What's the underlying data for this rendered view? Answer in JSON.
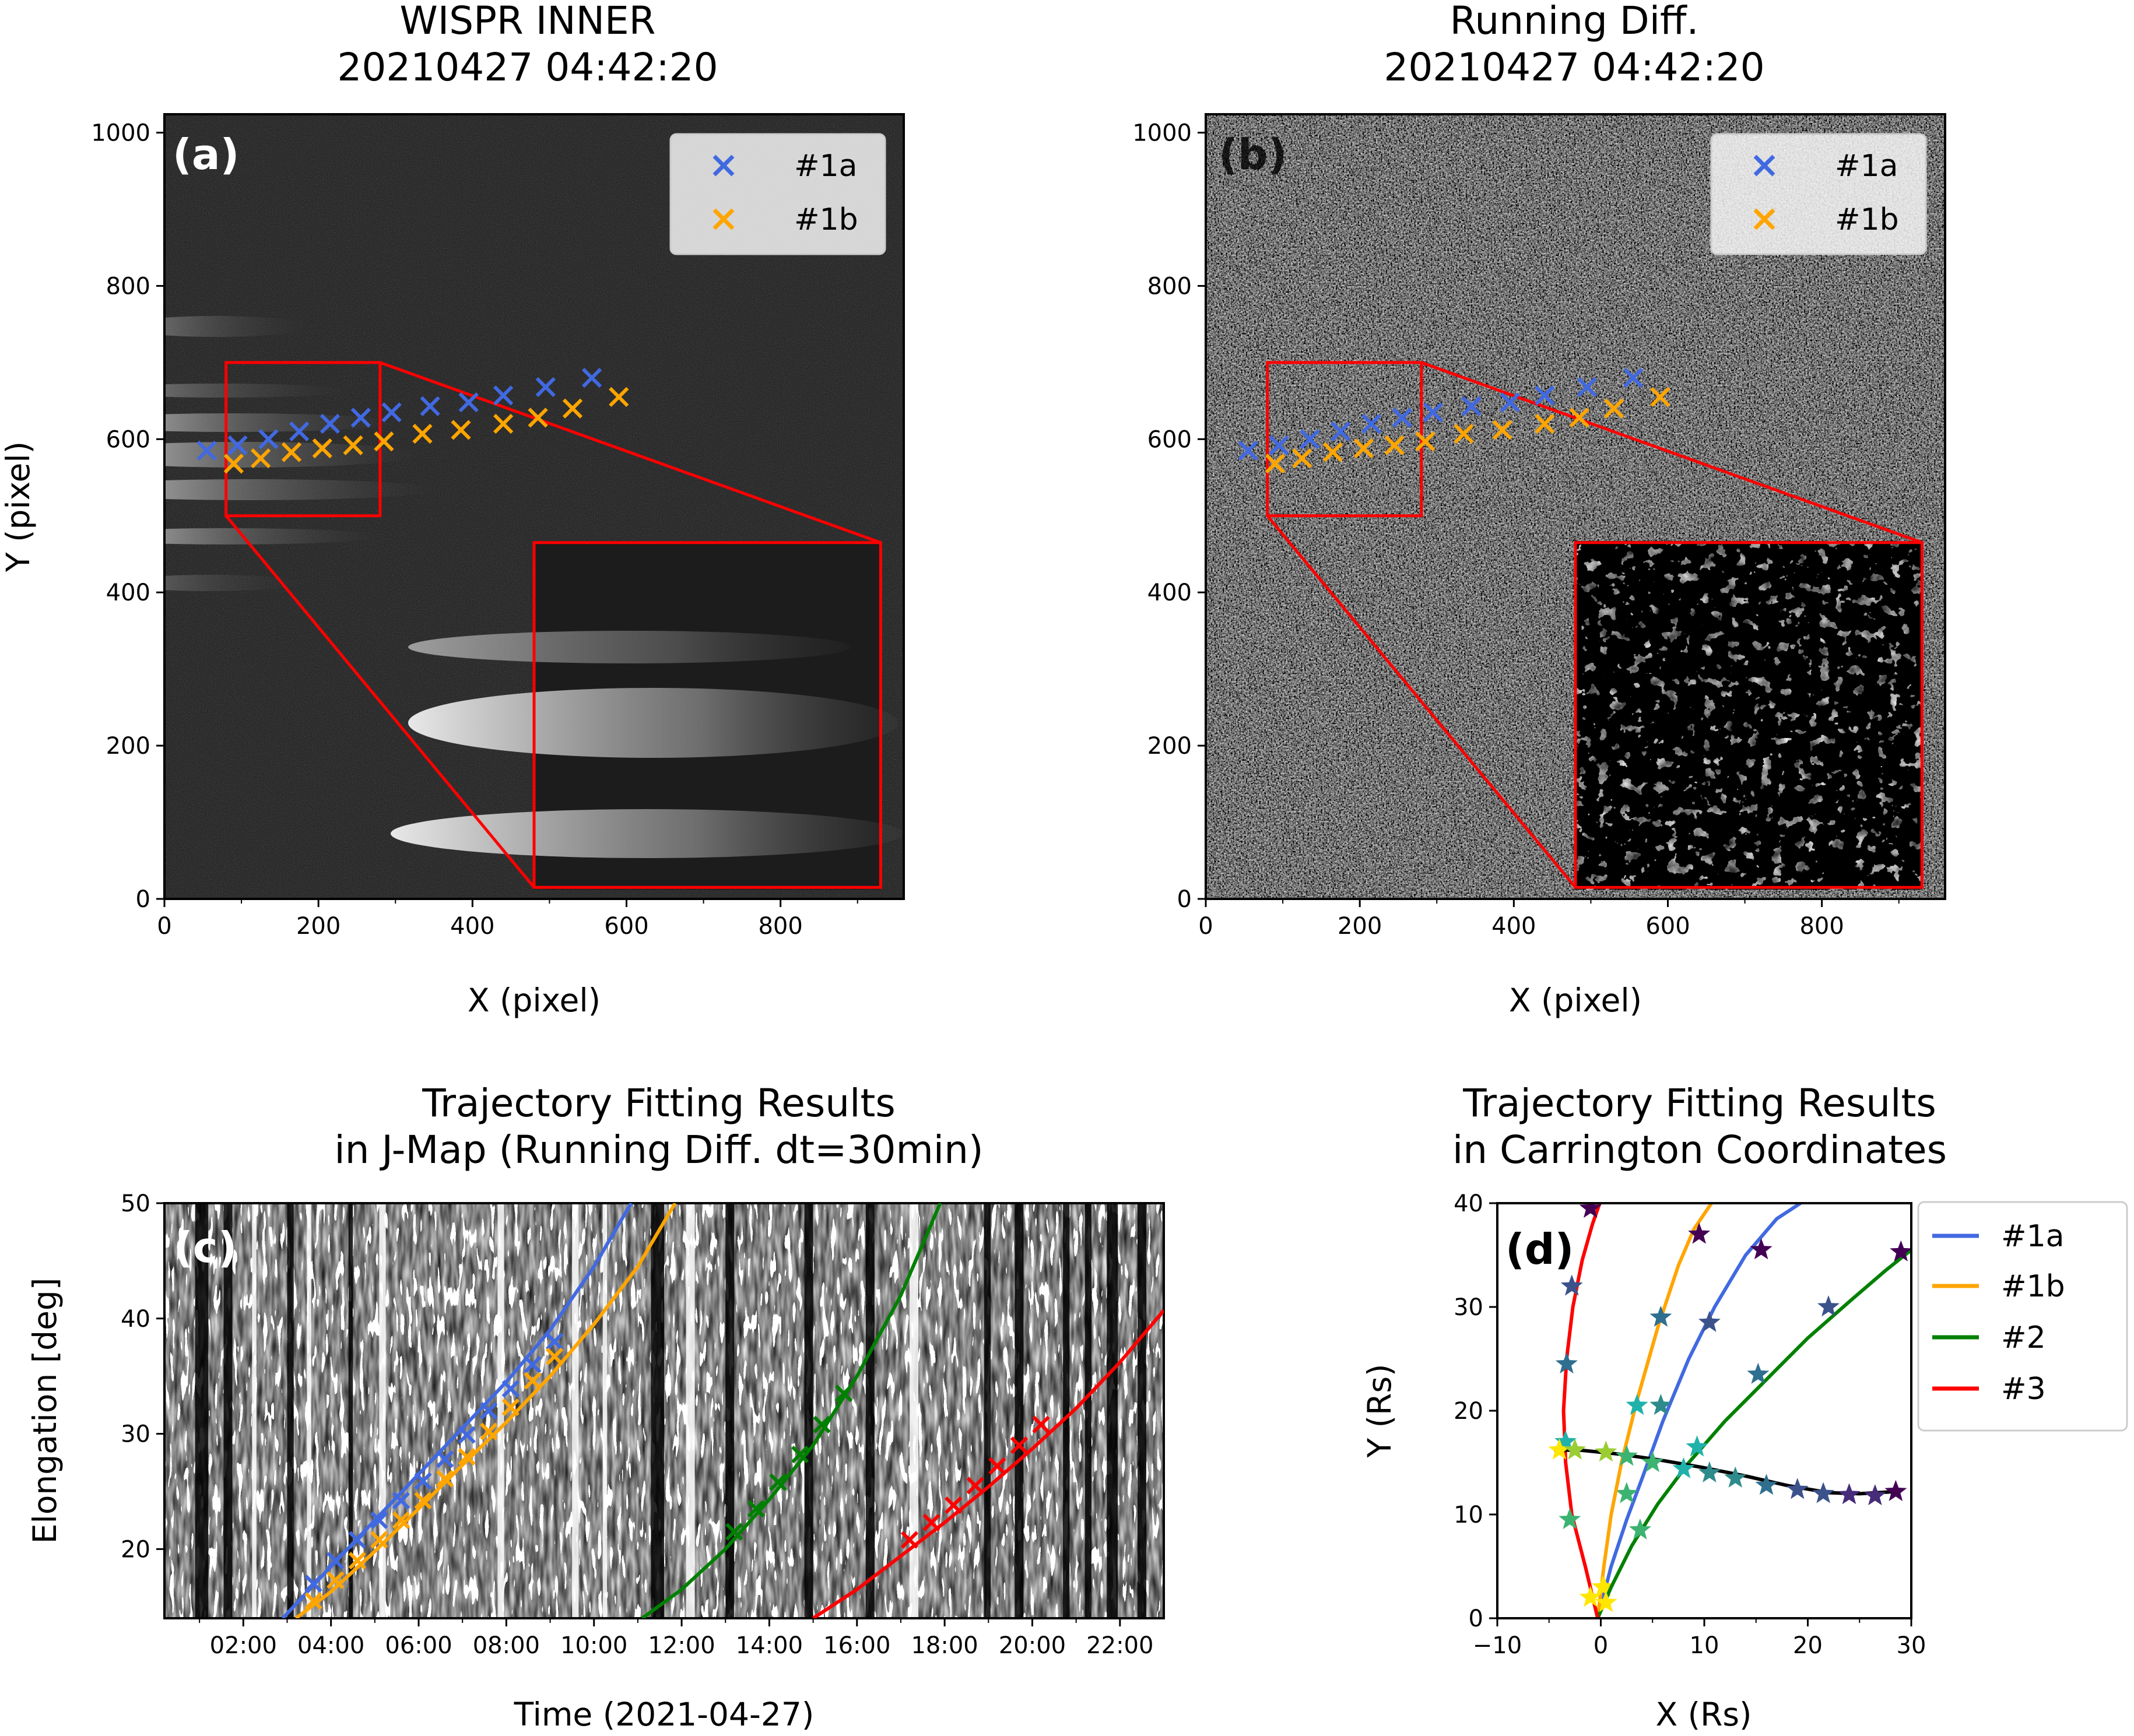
{
  "colors": {
    "series_1a": "#4169e1",
    "series_1b": "#ffa500",
    "series_2": "#008000",
    "series_3": "#ff0000",
    "frame_box": "#ff0000",
    "boundary_curve": "#000000"
  },
  "panels": {
    "a": {
      "label": "(a)",
      "title_line1": "WISPR INNER",
      "title_line2": "20210427 04:42:20",
      "xlabel": "X (pixel)",
      "ylabel": "Y (pixel)",
      "xticks": [
        "0",
        "200",
        "400",
        "600",
        "800"
      ],
      "yticks": [
        "0",
        "200",
        "400",
        "600",
        "800",
        "1000"
      ],
      "legend": [
        "#1a",
        "#1b"
      ]
    },
    "b": {
      "label": "(b)",
      "title_line1": "Running Diff.",
      "title_line2": "20210427 04:42:20",
      "xlabel": "X (pixel)",
      "xticks": [
        "0",
        "200",
        "400",
        "600",
        "800"
      ],
      "yticks": [
        "0",
        "200",
        "400",
        "600",
        "800",
        "1000"
      ],
      "legend": [
        "#1a",
        "#1b"
      ]
    },
    "c": {
      "label": "(c)",
      "title_line1": "Trajectory Fitting Results",
      "title_line2": "in J-Map (Running Diff. dt=30min)",
      "xlabel": "Time (2021-04-27)",
      "ylabel": "Elongation [deg]",
      "xticks": [
        "02:00",
        "04:00",
        "06:00",
        "08:00",
        "10:00",
        "12:00",
        "14:00",
        "16:00",
        "18:00",
        "20:00",
        "22:00"
      ],
      "yticks": [
        "20",
        "30",
        "40",
        "50"
      ]
    },
    "d": {
      "label": "(d)",
      "title_line1": "Trajectory Fitting Results",
      "title_line2": "in Carrington Coordinates",
      "xlabel": "X (Rs)",
      "ylabel": "Y (Rs)",
      "xticks": [
        "−10",
        "0",
        "10",
        "20",
        "30"
      ],
      "yticks": [
        "0",
        "10",
        "20",
        "30",
        "40"
      ],
      "legend": [
        "#1a",
        "#1b",
        "#2",
        "#3"
      ]
    }
  },
  "chart_data": [
    {
      "panel": "a",
      "type": "scatter",
      "xlim": [
        0,
        960
      ],
      "ylim": [
        0,
        1024
      ],
      "series": [
        {
          "name": "#1a",
          "x": [
            55,
            95,
            135,
            175,
            215,
            255,
            295,
            345,
            395,
            440,
            495,
            555
          ],
          "y": [
            585,
            592,
            600,
            610,
            620,
            628,
            635,
            643,
            648,
            657,
            668,
            680
          ]
        },
        {
          "name": "#1b",
          "x": [
            90,
            125,
            165,
            205,
            245,
            285,
            335,
            385,
            440,
            485,
            530,
            590
          ],
          "y": [
            568,
            575,
            583,
            588,
            592,
            597,
            607,
            612,
            620,
            628,
            640,
            655
          ]
        }
      ],
      "zoom_box": {
        "x0": 80,
        "x1": 280,
        "y0": 500,
        "y1": 700
      },
      "inset_box": {
        "x0": 480,
        "x1": 930,
        "y0": 15,
        "y1": 465
      }
    },
    {
      "panel": "b",
      "type": "scatter",
      "xlim": [
        0,
        960
      ],
      "ylim": [
        0,
        1024
      ],
      "series": [
        {
          "name": "#1a",
          "x": [
            55,
            95,
            135,
            175,
            215,
            255,
            295,
            345,
            395,
            440,
            495,
            555
          ],
          "y": [
            585,
            592,
            600,
            610,
            620,
            628,
            635,
            643,
            648,
            657,
            668,
            680
          ]
        },
        {
          "name": "#1b",
          "x": [
            90,
            125,
            165,
            205,
            245,
            285,
            335,
            385,
            440,
            485,
            530,
            590
          ],
          "y": [
            568,
            575,
            583,
            588,
            592,
            597,
            607,
            612,
            620,
            628,
            640,
            655
          ]
        }
      ],
      "zoom_box": {
        "x0": 80,
        "x1": 280,
        "y0": 500,
        "y1": 700
      },
      "inset_box": {
        "x0": 480,
        "x1": 930,
        "y0": 15,
        "y1": 465
      }
    },
    {
      "panel": "c",
      "type": "line",
      "xlim": [
        0.2,
        23.0
      ],
      "ylim": [
        14,
        50
      ],
      "x_unit": "hours of 2021-04-27",
      "series": [
        {
          "name": "#1a",
          "fit_x": [
            2.9,
            4.0,
            5.0,
            6.0,
            7.0,
            8.0,
            9.0,
            10.0,
            10.85
          ],
          "fit_y": [
            14,
            18.5,
            22.5,
            26.5,
            30.5,
            34.5,
            39.0,
            44.5,
            50
          ],
          "points_x": [
            3.6,
            4.1,
            4.6,
            5.1,
            5.6,
            6.1,
            6.6,
            7.1,
            7.6,
            8.1,
            8.6,
            9.1
          ],
          "points_y": [
            17.0,
            19.0,
            20.8,
            22.5,
            24.2,
            25.9,
            27.8,
            29.9,
            32.0,
            33.9,
            36.0,
            38.0
          ]
        },
        {
          "name": "#1b",
          "fit_x": [
            3.2,
            4.0,
            5.0,
            6.0,
            7.0,
            8.0,
            9.0,
            10.0,
            11.0,
            11.85
          ],
          "fit_y": [
            14,
            16.3,
            19.8,
            23.5,
            27.3,
            31.0,
            35.0,
            39.5,
            44.5,
            50
          ],
          "points_x": [
            3.6,
            4.1,
            4.6,
            5.1,
            5.6,
            6.1,
            6.6,
            7.1,
            7.6,
            8.1,
            8.6,
            9.1
          ],
          "points_y": [
            15.5,
            17.3,
            19.0,
            20.8,
            22.5,
            24.2,
            26.1,
            28.0,
            30.2,
            32.3,
            34.6,
            36.7
          ]
        },
        {
          "name": "#2",
          "fit_x": [
            11.1,
            12.0,
            13.0,
            14.0,
            15.0,
            16.0,
            17.0,
            17.9
          ],
          "fit_y": [
            14,
            16.5,
            20.0,
            24.3,
            29.0,
            35.0,
            42.0,
            50
          ],
          "points_x": [
            13.2,
            13.7,
            14.2,
            14.7,
            15.2,
            15.7
          ],
          "points_y": [
            21.5,
            23.5,
            25.8,
            28.2,
            30.8,
            33.5
          ]
        },
        {
          "name": "#3",
          "fit_x": [
            15.0,
            16.0,
            17.0,
            18.0,
            19.0,
            20.0,
            21.0,
            22.0,
            23.0
          ],
          "fit_y": [
            14,
            16.5,
            19.4,
            22.3,
            25.4,
            28.7,
            32.2,
            36.2,
            40.7
          ],
          "points_x": [
            17.2,
            17.7,
            18.2,
            18.7,
            19.2,
            19.7,
            20.2
          ],
          "points_y": [
            20.8,
            22.3,
            23.8,
            25.5,
            27.2,
            29.0,
            30.8
          ]
        }
      ]
    },
    {
      "panel": "d",
      "type": "line",
      "xlim": [
        -10,
        30
      ],
      "ylim": [
        0,
        40
      ],
      "series": [
        {
          "name": "#1a",
          "fit_x": [
            -0.3,
            1.0,
            2.5,
            4.0,
            6.0,
            8.5,
            11.0,
            14.0,
            17.0,
            19.3
          ],
          "fit_y": [
            0,
            5.0,
            9.5,
            13.5,
            19.0,
            25.0,
            30.0,
            35.0,
            38.5,
            40
          ],
          "points_x": [
            0.3,
            2.5,
            5.8,
            10.5,
            15.5
          ],
          "points_y": [
            3.0,
            12.0,
            20.5,
            28.5,
            35.5
          ]
        },
        {
          "name": "#1b",
          "fit_x": [
            -0.3,
            0.3,
            1.0,
            2.0,
            3.5,
            5.5,
            7.5,
            9.0,
            10.7
          ],
          "fit_y": [
            0,
            5.0,
            10.0,
            15.0,
            21.0,
            28.0,
            34.0,
            37.5,
            40
          ],
          "points_x": [
            0.2,
            3.5,
            5.8,
            9.5
          ],
          "points_y": [
            3.0,
            20.5,
            29.0,
            37.0
          ]
        },
        {
          "name": "#2",
          "fit_x": [
            -0.3,
            1.0,
            3.0,
            5.5,
            8.5,
            12.0,
            16.0,
            20.0,
            24.0,
            27.5,
            30.0
          ],
          "fit_y": [
            0,
            3.0,
            7.0,
            11.0,
            15.0,
            19.0,
            23.0,
            27.0,
            30.5,
            33.5,
            35.5
          ],
          "points_x": [
            0.5,
            3.8,
            9.3,
            15.2,
            22.0,
            29.0
          ],
          "points_y": [
            1.5,
            8.5,
            16.5,
            23.5,
            30.0,
            35.3
          ]
        },
        {
          "name": "#3",
          "fit_x": [
            -0.3,
            -1.5,
            -2.8,
            -3.4,
            -3.6,
            -3.3,
            -2.7,
            -1.8,
            -0.8,
            -0.1
          ],
          "fit_y": [
            0,
            5.0,
            10.0,
            15.0,
            20.0,
            25.0,
            30.0,
            34.5,
            38.0,
            40
          ],
          "points_x": [
            -1.0,
            -3.0,
            -3.4,
            -3.3,
            -2.8,
            -1.0
          ],
          "points_y": [
            2.0,
            9.5,
            17.0,
            24.5,
            32.0,
            39.5
          ]
        },
        {
          "name": "",
          "fit_x": [
            -4.5,
            -2.0,
            2.0,
            6.0,
            10.0,
            14.0,
            18.0,
            22.0,
            25.0,
            28.5
          ],
          "fit_y": [
            16.2,
            16.2,
            15.8,
            15.2,
            14.5,
            13.7,
            12.8,
            12.1,
            12.0,
            12.2
          ],
          "points_x": [
            -4.0,
            -2.5,
            0.5,
            2.5,
            5.0,
            8.0,
            10.5,
            13.0,
            16.0,
            19.0,
            21.5,
            24.0,
            26.5,
            28.5
          ],
          "points_y": [
            16.2,
            16.2,
            16.0,
            15.6,
            15.0,
            14.4,
            14.0,
            13.5,
            12.8,
            12.4,
            12.0,
            11.9,
            11.8,
            12.2
          ]
        }
      ]
    }
  ]
}
